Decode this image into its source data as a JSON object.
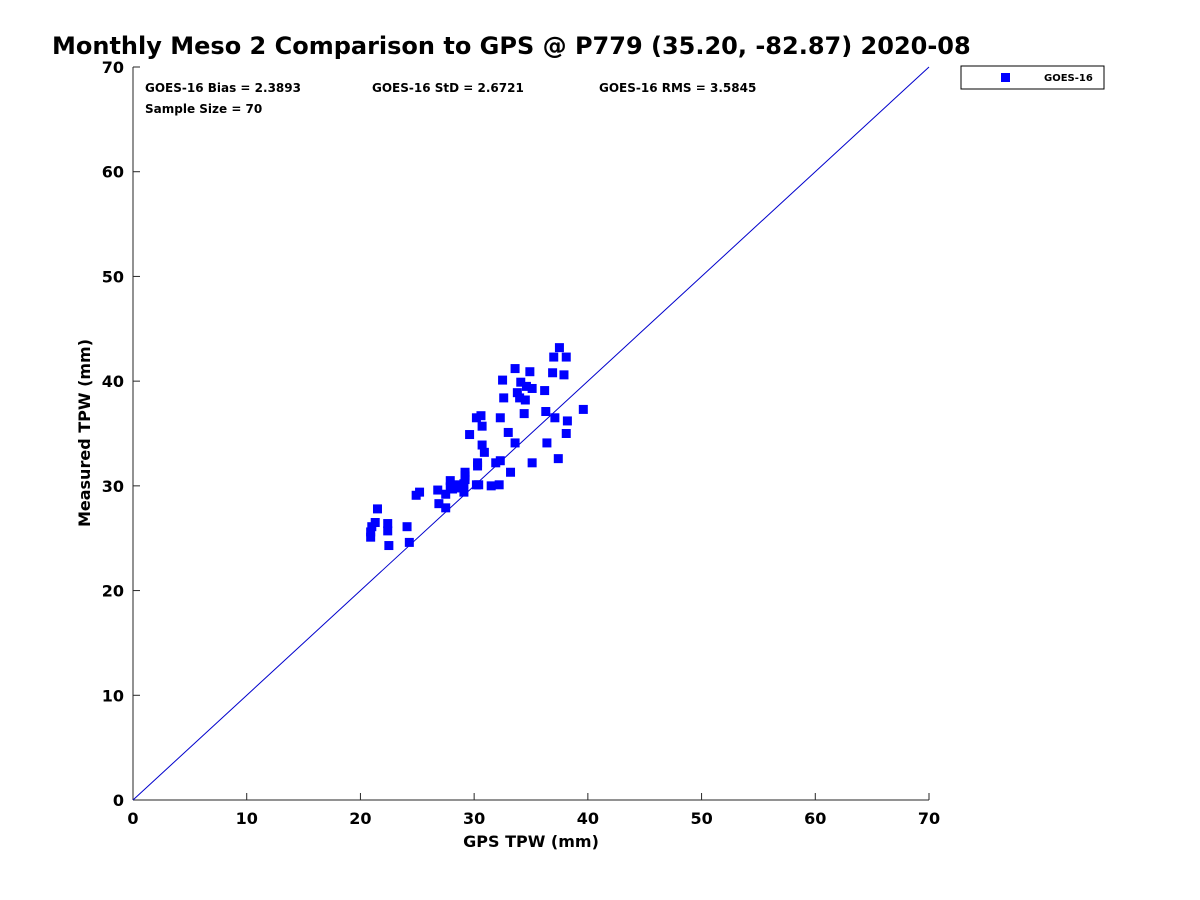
{
  "chart_data": {
    "type": "scatter",
    "title": "Monthly Meso 2 Comparison to GPS @ P779 (35.20, -82.87) 2020-08",
    "xlabel": "GPS TPW (mm)",
    "ylabel": "Measured TPW (mm)",
    "xlim": [
      0,
      70
    ],
    "ylim": [
      0,
      70
    ],
    "xticks": [
      "0",
      "10",
      "20",
      "30",
      "40",
      "50",
      "60",
      "70"
    ],
    "yticks": [
      "0",
      "10",
      "20",
      "30",
      "40",
      "50",
      "60",
      "70"
    ],
    "grid": false,
    "legend_position": "outside-top-right",
    "reference_line": {
      "x": [
        0,
        70
      ],
      "y": [
        0,
        70
      ],
      "color": "#0000cc"
    },
    "stats": {
      "bias": "GOES-16 Bias = 2.3893",
      "std": "GOES-16 StD = 2.6721",
      "rms": "GOES-16 RMS = 3.5845",
      "sample": "Sample Size = 70"
    },
    "series": [
      {
        "name": "GOES-16",
        "color": "#0000ff",
        "marker": "square",
        "x": [
          20.9,
          20.9,
          21.0,
          21.3,
          21.5,
          22.4,
          22.4,
          22.5,
          24.1,
          24.3,
          24.9,
          25.2,
          26.8,
          26.9,
          27.5,
          27.5,
          27.9,
          27.9,
          28.1,
          28.4,
          28.6,
          29.1,
          29.1,
          29.2,
          29.2,
          29.2,
          29.2,
          29.6,
          30.2,
          30.2,
          30.3,
          30.3,
          30.4,
          30.6,
          30.7,
          30.7,
          30.9,
          31.5,
          31.9,
          32.2,
          32.3,
          32.3,
          32.5,
          32.6,
          33.0,
          33.2,
          33.6,
          33.6,
          33.8,
          34.0,
          34.1,
          34.4,
          34.5,
          34.6,
          34.9,
          35.1,
          35.1,
          36.2,
          36.3,
          36.4,
          36.9,
          37.0,
          37.1,
          37.4,
          37.5,
          37.9,
          38.1,
          38.2,
          38.1,
          39.6
        ],
        "y": [
          25.1,
          25.6,
          26.1,
          26.5,
          27.8,
          25.7,
          26.4,
          24.3,
          26.1,
          24.6,
          29.1,
          29.4,
          29.6,
          28.3,
          27.9,
          29.2,
          29.9,
          30.5,
          29.7,
          30.1,
          29.8,
          29.4,
          30.2,
          30.6,
          31.0,
          30.9,
          31.3,
          34.9,
          36.5,
          30.1,
          31.9,
          32.2,
          30.1,
          36.7,
          35.7,
          33.9,
          33.2,
          30.0,
          32.2,
          30.1,
          32.4,
          36.5,
          40.1,
          38.4,
          35.1,
          31.3,
          41.2,
          34.1,
          38.9,
          38.4,
          39.9,
          36.9,
          38.2,
          39.5,
          40.9,
          32.2,
          39.3,
          39.1,
          37.1,
          34.1,
          40.8,
          42.3,
          36.5,
          32.6,
          43.2,
          40.6,
          42.3,
          36.2,
          35.0,
          37.3
        ]
      }
    ]
  }
}
